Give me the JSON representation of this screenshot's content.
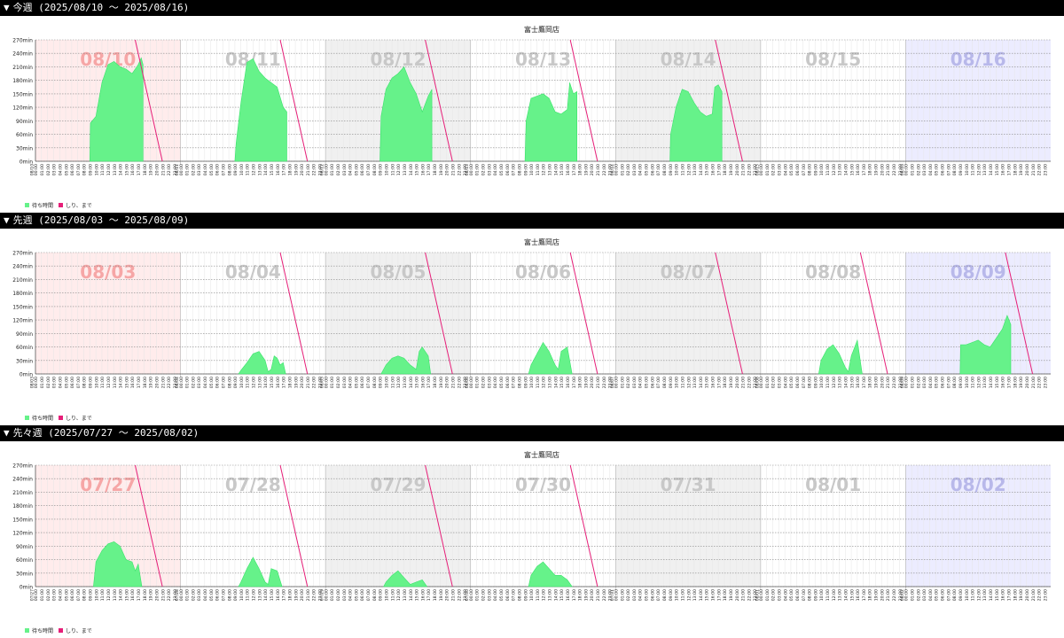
{
  "colors": {
    "header_bg": "#000000",
    "wait_fill": "#66f28a",
    "wait_edge": "#39e36a",
    "limit_line": "#e61e78",
    "first_day_bg": "#ffecec",
    "odd_day_bg": "#f0f0f0",
    "last_day_bg": "#ececff",
    "first_day_label": "#f6a6a6",
    "mid_day_label": "#c8c8c8",
    "last_day_label": "#b8b8ea"
  },
  "yticks": [
    "0min",
    "30min",
    "60min",
    "90min",
    "120min",
    "150min",
    "180min",
    "210min",
    "240min",
    "270min"
  ],
  "hour_labels": [
    "00:00",
    "01:00",
    "02:00",
    "03:00",
    "04:00",
    "05:00",
    "06:00",
    "07:00",
    "08:00",
    "09:00",
    "10:00",
    "11:00",
    "12:00",
    "13:00",
    "14:00",
    "15:00",
    "16:00",
    "17:00",
    "18:00",
    "19:00",
    "20:00",
    "21:00",
    "22:00",
    "23:00"
  ],
  "legend": {
    "wait_label": "待ち時間",
    "limit_label": "しり、まで"
  },
  "weeks": [
    {
      "marker": "▼",
      "heading": "今週 (2025/08/10 〜 2025/08/16)",
      "chart_data": {
        "type": "area",
        "title": "富士鷹岡店",
        "ylim": [
          0,
          270
        ],
        "grid": true,
        "days": [
          {
            "date": "08/10",
            "label": "08/10",
            "wait": [
              [
                9,
                0
              ],
              [
                9.1,
                85
              ],
              [
                10,
                100
              ],
              [
                11,
                175
              ],
              [
                12,
                215
              ],
              [
                13,
                222
              ],
              [
                14,
                210
              ],
              [
                15,
                205
              ],
              [
                16,
                195
              ],
              [
                17,
                215
              ],
              [
                17.5,
                230
              ],
              [
                17.8,
                215
              ],
              [
                17.8,
                0
              ]
            ],
            "limit": [
              [
                16.5,
                270
              ],
              [
                21,
                0
              ]
            ]
          },
          {
            "date": "08/11",
            "label": "08/11",
            "wait": [
              [
                9,
                0
              ],
              [
                9.2,
                40
              ],
              [
                10,
                130
              ],
              [
                11,
                220
              ],
              [
                12,
                228
              ],
              [
                13,
                200
              ],
              [
                14,
                185
              ],
              [
                15,
                175
              ],
              [
                16,
                165
              ],
              [
                17,
                120
              ],
              [
                17.6,
                110
              ],
              [
                17.6,
                0
              ]
            ],
            "limit": [
              [
                16.5,
                270
              ],
              [
                21,
                0
              ]
            ]
          },
          {
            "date": "08/12",
            "label": "08/12",
            "wait": [
              [
                9,
                0
              ],
              [
                9.2,
                100
              ],
              [
                10,
                160
              ],
              [
                11,
                185
              ],
              [
                12,
                195
              ],
              [
                13,
                210
              ],
              [
                14,
                175
              ],
              [
                15,
                150
              ],
              [
                16,
                110
              ],
              [
                17,
                145
              ],
              [
                17.6,
                160
              ],
              [
                17.6,
                0
              ]
            ],
            "limit": [
              [
                16.5,
                270
              ],
              [
                21,
                0
              ]
            ]
          },
          {
            "date": "08/13",
            "label": "08/13",
            "wait": [
              [
                9,
                0
              ],
              [
                9.2,
                90
              ],
              [
                10,
                140
              ],
              [
                11,
                145
              ],
              [
                12,
                150
              ],
              [
                13,
                140
              ],
              [
                14,
                110
              ],
              [
                15,
                105
              ],
              [
                16,
                115
              ],
              [
                16.4,
                175
              ],
              [
                17,
                150
              ],
              [
                17.6,
                155
              ],
              [
                17.6,
                0
              ]
            ],
            "limit": [
              [
                16.5,
                270
              ],
              [
                21,
                0
              ]
            ]
          },
          {
            "date": "08/14",
            "label": "08/14",
            "wait": [
              [
                9,
                0
              ],
              [
                9.1,
                60
              ],
              [
                10,
                120
              ],
              [
                11,
                160
              ],
              [
                12,
                155
              ],
              [
                13,
                130
              ],
              [
                14,
                110
              ],
              [
                15,
                100
              ],
              [
                16,
                105
              ],
              [
                16.4,
                165
              ],
              [
                17,
                170
              ],
              [
                17.6,
                155
              ],
              [
                17.6,
                0
              ]
            ],
            "limit": [
              [
                16.5,
                270
              ],
              [
                21,
                0
              ]
            ]
          },
          {
            "date": "08/15",
            "label": "08/15",
            "wait": [],
            "limit": []
          },
          {
            "date": "08/16",
            "label": "08/16",
            "wait": [],
            "limit": []
          }
        ]
      }
    },
    {
      "marker": "▼",
      "heading": "先週 (2025/08/03 〜 2025/08/09)",
      "chart_data": {
        "type": "area",
        "title": "富士鷹岡店",
        "ylim": [
          0,
          270
        ],
        "grid": true,
        "days": [
          {
            "date": "08/03",
            "label": "08/03",
            "wait": [],
            "limit": []
          },
          {
            "date": "08/04",
            "label": "08/04",
            "wait": [
              [
                9.6,
                0
              ],
              [
                10,
                8
              ],
              [
                11,
                25
              ],
              [
                12,
                45
              ],
              [
                13,
                50
              ],
              [
                14,
                30
              ],
              [
                14.5,
                5
              ],
              [
                15,
                10
              ],
              [
                15.5,
                40
              ],
              [
                16,
                35
              ],
              [
                16.5,
                20
              ],
              [
                17,
                25
              ],
              [
                17.4,
                0
              ]
            ],
            "limit": [
              [
                16.5,
                270
              ],
              [
                21,
                0
              ]
            ]
          },
          {
            "date": "08/05",
            "label": "08/05",
            "wait": [
              [
                9.2,
                0
              ],
              [
                10,
                20
              ],
              [
                11,
                35
              ],
              [
                12,
                40
              ],
              [
                13,
                35
              ],
              [
                14,
                20
              ],
              [
                15,
                10
              ],
              [
                15.5,
                50
              ],
              [
                16,
                60
              ],
              [
                17,
                40
              ],
              [
                17.4,
                0
              ]
            ],
            "limit": [
              [
                16.5,
                270
              ],
              [
                21,
                0
              ]
            ]
          },
          {
            "date": "08/06",
            "label": "08/06",
            "wait": [
              [
                9.6,
                0
              ],
              [
                10,
                20
              ],
              [
                11,
                45
              ],
              [
                12,
                70
              ],
              [
                13,
                50
              ],
              [
                14,
                20
              ],
              [
                14.5,
                10
              ],
              [
                15,
                50
              ],
              [
                16,
                60
              ],
              [
                16.8,
                0
              ]
            ],
            "limit": [
              [
                16.5,
                270
              ],
              [
                21,
                0
              ]
            ]
          },
          {
            "date": "08/07",
            "label": "08/07",
            "wait": [],
            "limit": [
              [
                16.5,
                270
              ],
              [
                21,
                0
              ]
            ]
          },
          {
            "date": "08/08",
            "label": "08/08",
            "wait": [
              [
                9.6,
                0
              ],
              [
                10,
                30
              ],
              [
                11,
                55
              ],
              [
                12,
                65
              ],
              [
                13,
                45
              ],
              [
                14,
                15
              ],
              [
                14.5,
                5
              ],
              [
                15,
                40
              ],
              [
                16,
                75
              ],
              [
                16.8,
                0
              ]
            ],
            "limit": [
              [
                16.5,
                270
              ],
              [
                21,
                0
              ]
            ]
          },
          {
            "date": "08/09",
            "label": "08/09",
            "wait": [
              [
                9,
                0
              ],
              [
                9.1,
                65
              ],
              [
                10,
                65
              ],
              [
                11,
                70
              ],
              [
                12,
                75
              ],
              [
                13,
                65
              ],
              [
                14,
                60
              ],
              [
                15,
                80
              ],
              [
                16,
                100
              ],
              [
                16.8,
                130
              ],
              [
                17.4,
                110
              ],
              [
                17.4,
                0
              ]
            ],
            "limit": [
              [
                16.5,
                270
              ],
              [
                21,
                0
              ]
            ]
          }
        ]
      }
    },
    {
      "marker": "▼",
      "heading": "先々週 (2025/07/27 〜 2025/08/02)",
      "chart_data": {
        "type": "area",
        "title": "富士鷹岡店",
        "ylim": [
          0,
          270
        ],
        "grid": true,
        "days": [
          {
            "date": "07/27",
            "label": "07/27",
            "wait": [
              [
                9.6,
                0
              ],
              [
                10,
                55
              ],
              [
                11,
                80
              ],
              [
                12,
                95
              ],
              [
                13,
                100
              ],
              [
                14,
                90
              ],
              [
                15,
                60
              ],
              [
                16,
                55
              ],
              [
                16.5,
                35
              ],
              [
                17,
                50
              ],
              [
                17.6,
                0
              ]
            ],
            "limit": [
              [
                16.5,
                270
              ],
              [
                21,
                0
              ]
            ]
          },
          {
            "date": "07/28",
            "label": "07/28",
            "wait": [
              [
                9.6,
                0
              ],
              [
                10,
                10
              ],
              [
                11,
                40
              ],
              [
                12,
                65
              ],
              [
                13,
                40
              ],
              [
                14,
                10
              ],
              [
                14.5,
                5
              ],
              [
                15,
                40
              ],
              [
                16,
                35
              ],
              [
                16.8,
                0
              ]
            ],
            "limit": [
              [
                16.5,
                270
              ],
              [
                21,
                0
              ]
            ]
          },
          {
            "date": "07/29",
            "label": "07/29",
            "wait": [
              [
                9.6,
                0
              ],
              [
                10,
                10
              ],
              [
                11,
                25
              ],
              [
                12,
                35
              ],
              [
                13,
                20
              ],
              [
                14,
                5
              ],
              [
                15,
                10
              ],
              [
                16,
                15
              ],
              [
                16.8,
                0
              ]
            ],
            "limit": [
              [
                16.5,
                270
              ],
              [
                21,
                0
              ]
            ]
          },
          {
            "date": "07/30",
            "label": "07/30",
            "wait": [
              [
                9.6,
                0
              ],
              [
                10,
                25
              ],
              [
                11,
                45
              ],
              [
                12,
                55
              ],
              [
                13,
                40
              ],
              [
                14,
                25
              ],
              [
                15,
                25
              ],
              [
                16,
                15
              ],
              [
                16.8,
                0
              ]
            ],
            "limit": [
              [
                16.5,
                270
              ],
              [
                21,
                0
              ]
            ]
          },
          {
            "date": "07/31",
            "label": "07/31",
            "wait": [],
            "limit": []
          },
          {
            "date": "08/01",
            "label": "08/01",
            "wait": [],
            "limit": []
          },
          {
            "date": "08/02",
            "label": "08/02",
            "wait": [],
            "limit": []
          }
        ]
      }
    }
  ]
}
